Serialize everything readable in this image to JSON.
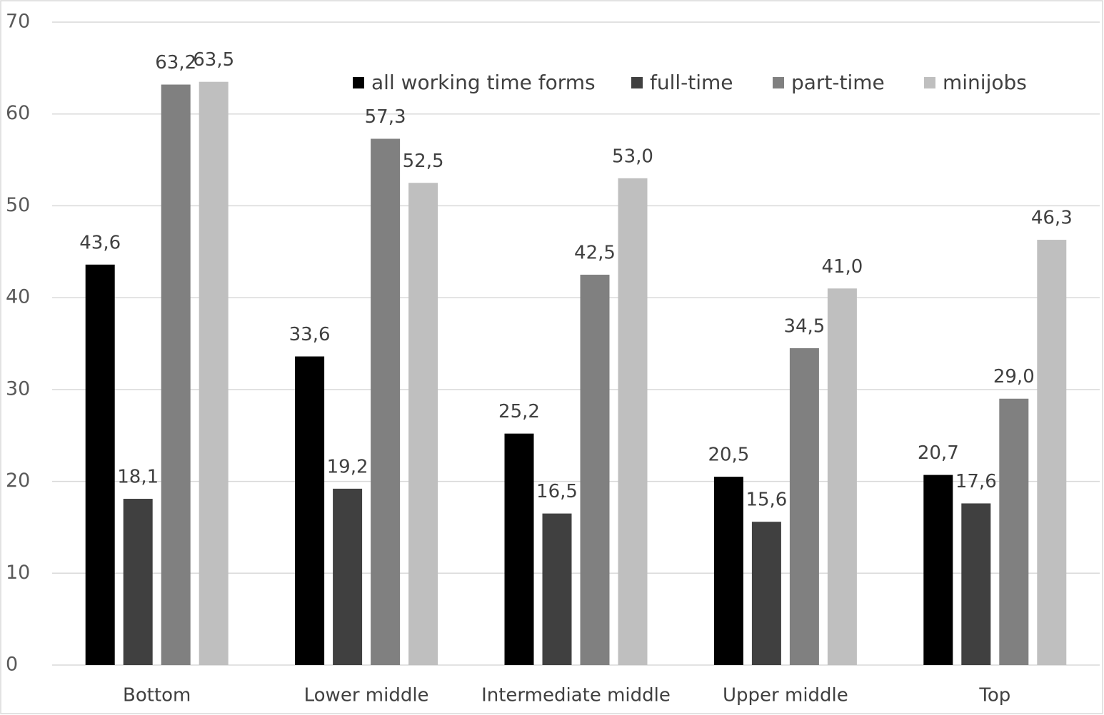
{
  "chart_data": {
    "type": "bar",
    "categories": [
      "Bottom",
      "Lower middle",
      "Intermediate middle",
      "Upper middle",
      "Top"
    ],
    "series": [
      {
        "name": "all working time forms",
        "color": "#000000",
        "values": [
          43.6,
          33.6,
          25.2,
          20.5,
          20.7
        ],
        "value_labels": [
          "43,6",
          "33,6",
          "25,2",
          "20,5",
          "20,7"
        ]
      },
      {
        "name": "full-time",
        "color": "#404040",
        "values": [
          18.1,
          19.2,
          16.5,
          15.6,
          17.6
        ],
        "value_labels": [
          "18,1",
          "19,2",
          "16,5",
          "15,6",
          "17,6"
        ]
      },
      {
        "name": "part-time",
        "color": "#808080",
        "values": [
          63.2,
          57.3,
          42.5,
          34.5,
          29.0
        ],
        "value_labels": [
          "63,2",
          "57,3",
          "42,5",
          "34,5",
          "29,0"
        ]
      },
      {
        "name": "minijobs",
        "color": "#bfbfbf",
        "values": [
          63.5,
          52.5,
          53.0,
          41.0,
          46.3
        ],
        "value_labels": [
          "63,5",
          "52,5",
          "53,0",
          "41,0",
          "46,3"
        ]
      }
    ],
    "ylim": [
      0,
      70
    ],
    "yticks": [
      0,
      10,
      20,
      30,
      40,
      50,
      60,
      70
    ],
    "grid": true
  }
}
